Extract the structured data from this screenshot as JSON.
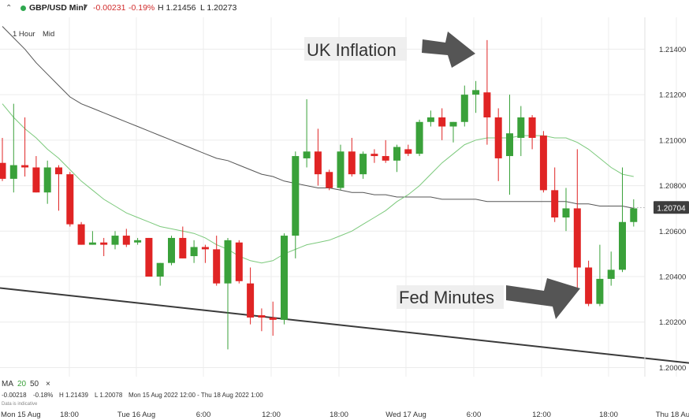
{
  "header": {
    "instrument": "GBP/USD Mini",
    "change": "-0.00231",
    "change_pct": "-0.19%",
    "high": "H 1.21456",
    "low": "L 1.20273",
    "timeframe": "1 Hour",
    "price_type": "Mid"
  },
  "indicator": {
    "name": "MA",
    "period1": "20",
    "period2": "50",
    "close": "×",
    "stats": {
      "change": "-0.00218",
      "change_pct": "-0.18%",
      "high": "H 1.21439",
      "low": "L 1.20078",
      "range": "Mon 15 Aug 2022 12:00 - Thu 18 Aug 2022 1:00"
    },
    "note": "Data is indicative"
  },
  "colors": {
    "up": "#3aa13a",
    "down": "#e02424",
    "ma20": "#7cc97c",
    "ma50": "#555555",
    "trend": "#3a3a3a",
    "grid": "#ececec",
    "price_badge": "#3d3d3d"
  },
  "chart_data": {
    "type": "candlestick",
    "y_axis_ticks": [
      "1.21400",
      "1.21200",
      "1.21000",
      "1.20800",
      "1.20600",
      "1.20400",
      "1.20200",
      "1.20000"
    ],
    "ylim": [
      1.1996,
      1.2154
    ],
    "x_axis_ticks": [
      "Mon 15 Aug",
      "18:00",
      "Tue 16 Aug",
      "6:00",
      "12:00",
      "18:00",
      "Wed 17 Aug",
      "6:00",
      "12:00",
      "18:00",
      "Thu 18 Aug"
    ],
    "last_price": "1.20704",
    "annotations": [
      "UK Inflation",
      "Fed Minutes"
    ],
    "candles": [
      {
        "o": 1.209,
        "h": 1.2101,
        "l": 1.2082,
        "c": 1.2083
      },
      {
        "o": 1.2083,
        "h": 1.2116,
        "l": 1.2077,
        "c": 1.2089
      },
      {
        "o": 1.2089,
        "h": 1.211,
        "l": 1.2084,
        "c": 1.2088
      },
      {
        "o": 1.2088,
        "h": 1.2093,
        "l": 1.2077,
        "c": 1.2077
      },
      {
        "o": 1.2077,
        "h": 1.2091,
        "l": 1.2072,
        "c": 1.2088
      },
      {
        "o": 1.2088,
        "h": 1.2089,
        "l": 1.2069,
        "c": 1.2085
      },
      {
        "o": 1.2085,
        "h": 1.2086,
        "l": 1.2062,
        "c": 1.2063
      },
      {
        "o": 1.2063,
        "h": 1.2064,
        "l": 1.2054,
        "c": 1.2054
      },
      {
        "o": 1.2054,
        "h": 1.206,
        "l": 1.2054,
        "c": 1.2055
      },
      {
        "o": 1.2055,
        "h": 1.2057,
        "l": 1.2049,
        "c": 1.2054
      },
      {
        "o": 1.2054,
        "h": 1.206,
        "l": 1.2052,
        "c": 1.2058
      },
      {
        "o": 1.2058,
        "h": 1.2061,
        "l": 1.2053,
        "c": 1.2054
      },
      {
        "o": 1.2055,
        "h": 1.2057,
        "l": 1.2054,
        "c": 1.2056
      },
      {
        "o": 1.2057,
        "h": 1.2057,
        "l": 1.204,
        "c": 1.204
      },
      {
        "o": 1.204,
        "h": 1.2046,
        "l": 1.2036,
        "c": 1.2046
      },
      {
        "o": 1.2046,
        "h": 1.2058,
        "l": 1.2045,
        "c": 1.2057
      },
      {
        "o": 1.2057,
        "h": 1.2062,
        "l": 1.2048,
        "c": 1.2048
      },
      {
        "o": 1.2049,
        "h": 1.2056,
        "l": 1.2046,
        "c": 1.2053
      },
      {
        "o": 1.2053,
        "h": 1.2054,
        "l": 1.2046,
        "c": 1.2052
      },
      {
        "o": 1.2052,
        "h": 1.2058,
        "l": 1.2036,
        "c": 1.2037
      },
      {
        "o": 1.2037,
        "h": 1.2057,
        "l": 1.2008,
        "c": 1.2056
      },
      {
        "o": 1.2055,
        "h": 1.2056,
        "l": 1.2037,
        "c": 1.2038
      },
      {
        "o": 1.2037,
        "h": 1.2044,
        "l": 1.2019,
        "c": 1.2022
      },
      {
        "o": 1.2023,
        "h": 1.2026,
        "l": 1.2016,
        "c": 1.2022
      },
      {
        "o": 1.2022,
        "h": 1.2029,
        "l": 1.2014,
        "c": 1.2021
      },
      {
        "o": 1.2021,
        "h": 1.2059,
        "l": 1.2019,
        "c": 1.2058
      },
      {
        "o": 1.2058,
        "h": 1.2095,
        "l": 1.2048,
        "c": 1.2093
      },
      {
        "o": 1.2092,
        "h": 1.2118,
        "l": 1.2088,
        "c": 1.2095
      },
      {
        "o": 1.2095,
        "h": 1.2105,
        "l": 1.208,
        "c": 1.2085
      },
      {
        "o": 1.2086,
        "h": 1.2087,
        "l": 1.2078,
        "c": 1.2079
      },
      {
        "o": 1.2079,
        "h": 1.2098,
        "l": 1.2078,
        "c": 1.2095
      },
      {
        "o": 1.2095,
        "h": 1.2101,
        "l": 1.2084,
        "c": 1.2085
      },
      {
        "o": 1.2085,
        "h": 1.2095,
        "l": 1.2083,
        "c": 1.2094
      },
      {
        "o": 1.2094,
        "h": 1.2096,
        "l": 1.209,
        "c": 1.2093
      },
      {
        "o": 1.2093,
        "h": 1.21,
        "l": 1.209,
        "c": 1.2091
      },
      {
        "o": 1.2091,
        "h": 1.2098,
        "l": 1.2086,
        "c": 1.2097
      },
      {
        "o": 1.2096,
        "h": 1.2098,
        "l": 1.2093,
        "c": 1.2094
      },
      {
        "o": 1.2094,
        "h": 1.2109,
        "l": 1.2093,
        "c": 1.2108
      },
      {
        "o": 1.2108,
        "h": 1.2113,
        "l": 1.2106,
        "c": 1.211
      },
      {
        "o": 1.211,
        "h": 1.2114,
        "l": 1.21,
        "c": 1.2106
      },
      {
        "o": 1.2106,
        "h": 1.2108,
        "l": 1.2099,
        "c": 1.2108
      },
      {
        "o": 1.2108,
        "h": 1.2124,
        "l": 1.2106,
        "c": 1.212
      },
      {
        "o": 1.212,
        "h": 1.2126,
        "l": 1.2112,
        "c": 1.2122
      },
      {
        "o": 1.2121,
        "h": 1.2144,
        "l": 1.2098,
        "c": 1.211
      },
      {
        "o": 1.211,
        "h": 1.2114,
        "l": 1.2082,
        "c": 1.2092
      },
      {
        "o": 1.2093,
        "h": 1.212,
        "l": 1.2076,
        "c": 1.2103
      },
      {
        "o": 1.2101,
        "h": 1.2115,
        "l": 1.2093,
        "c": 1.211
      },
      {
        "o": 1.211,
        "h": 1.2111,
        "l": 1.2096,
        "c": 1.2101
      },
      {
        "o": 1.2102,
        "h": 1.2104,
        "l": 1.2077,
        "c": 1.2078
      },
      {
        "o": 1.2078,
        "h": 1.2088,
        "l": 1.2064,
        "c": 1.2066
      },
      {
        "o": 1.2066,
        "h": 1.2079,
        "l": 1.206,
        "c": 1.207
      },
      {
        "o": 1.207,
        "h": 1.2096,
        "l": 1.2035,
        "c": 1.2044
      },
      {
        "o": 1.2044,
        "h": 1.2047,
        "l": 1.2027,
        "c": 1.2028
      },
      {
        "o": 1.2028,
        "h": 1.2054,
        "l": 1.2027,
        "c": 1.2039
      },
      {
        "o": 1.2039,
        "h": 1.2051,
        "l": 1.2036,
        "c": 1.2043
      },
      {
        "o": 1.2043,
        "h": 1.2088,
        "l": 1.2042,
        "c": 1.2064
      },
      {
        "o": 1.2064,
        "h": 1.2074,
        "l": 1.2062,
        "c": 1.207
      }
    ],
    "ma20": [
      1.2116,
      1.211,
      1.2105,
      1.2101,
      1.2096,
      1.2092,
      1.2087,
      1.2082,
      1.2078,
      1.2074,
      1.2071,
      1.2068,
      1.2066,
      1.2064,
      1.2062,
      1.2061,
      1.206,
      1.2059,
      1.2057,
      1.2054,
      1.2052,
      1.2049,
      1.2047,
      1.2046,
      1.2047,
      1.205,
      1.2052,
      1.2054,
      1.2055,
      1.2056,
      1.2058,
      1.206,
      1.2063,
      1.2066,
      1.2069,
      1.2073,
      1.2076,
      1.208,
      1.2085,
      1.209,
      1.2094,
      1.2098,
      1.21,
      1.2101,
      1.2101,
      1.2101,
      1.2102,
      1.2102,
      1.2102,
      1.2101,
      1.2101,
      1.2099,
      1.2096,
      1.2092,
      1.2088,
      1.2085,
      1.2084
    ],
    "ma50": [
      1.215,
      1.2145,
      1.214,
      1.2134,
      1.2129,
      1.2124,
      1.2119,
      1.2116,
      1.2114,
      1.2112,
      1.211,
      1.2108,
      1.2106,
      1.2104,
      1.2102,
      1.21,
      1.2098,
      1.2096,
      1.2094,
      1.2092,
      1.2091,
      1.2089,
      1.2087,
      1.2085,
      1.2084,
      1.2082,
      1.2081,
      1.208,
      1.2079,
      1.2079,
      1.2078,
      1.2077,
      1.2077,
      1.2076,
      1.2076,
      1.2075,
      1.2075,
      1.2075,
      1.2075,
      1.2074,
      1.2074,
      1.2074,
      1.2074,
      1.2073,
      1.2073,
      1.2073,
      1.2073,
      1.2073,
      1.2073,
      1.2073,
      1.2073,
      1.2072,
      1.2072,
      1.2071,
      1.2071,
      1.2071,
      1.207
    ],
    "trendline": {
      "x0": 0,
      "y0": 1.2035,
      "x1": 56,
      "y1": 1.2002
    }
  }
}
